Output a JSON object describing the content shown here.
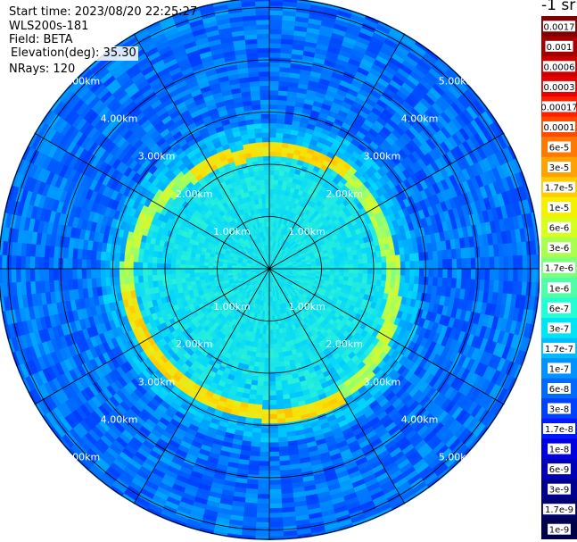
{
  "header": {
    "start_time": "Start time: 2023/08/20 22:25:27",
    "station": "WLS200s-181",
    "field": "Field: BETA",
    "elevation": "Elevation(deg): 35.30",
    "nrays": "NRays: 120"
  },
  "colorbar": {
    "unit": "-1 sr",
    "labels": [
      "0.0017",
      "0.001",
      "0.0006",
      "0.0003",
      "0.00017",
      "0.0001",
      "6e-5",
      "3e-5",
      "1.7e-5",
      "1e-5",
      "6e-6",
      "3e-6",
      "1.7e-6",
      "1e-6",
      "6e-7",
      "3e-7",
      "1.7e-7",
      "1e-7",
      "6e-8",
      "3e-8",
      "1.7e-8",
      "1e-8",
      "6e-9",
      "3e-9",
      "1.7e-9",
      "1e-9"
    ],
    "colors": [
      "#7f0000",
      "#a50000",
      "#c80000",
      "#e60000",
      "#ff1e00",
      "#ff4a00",
      "#ff7800",
      "#ffa200",
      "#ffcc00",
      "#f5f000",
      "#d6ff1c",
      "#a8ff4e",
      "#7cff7a",
      "#4effa8",
      "#22ffd4",
      "#00e4f8",
      "#00bcff",
      "#0092ff",
      "#006aff",
      "#0040ff",
      "#0018ff",
      "#0000e0",
      "#0000b8",
      "#000090",
      "#00006a",
      "#00004a"
    ]
  },
  "rings": {
    "labels_km": [
      "1.00km",
      "2.00km",
      "3.00km",
      "4.00km",
      "5.00km"
    ]
  },
  "chart_data": {
    "type": "heatmap",
    "projection": "polar-ppi",
    "field": "BETA",
    "elevation_deg": 35.3,
    "nrays": 120,
    "range_rings_km": [
      1,
      2,
      3,
      4,
      5
    ],
    "max_range_km": 5.2,
    "azimuth_spokes_deg": [
      0,
      30,
      60,
      90,
      120,
      150,
      180,
      210,
      240,
      270,
      300,
      330
    ],
    "scale": "log",
    "value_range": [
      1e-09,
      0.0017
    ],
    "features": [
      {
        "description": "near-range return, about 1e-6 to 3e-7",
        "range_km": [
          0,
          2.9
        ]
      },
      {
        "description": "enhanced ring near cloud base, about 1e-5 to 6e-6",
        "range_km": [
          2.3,
          3.1
        ]
      },
      {
        "description": "outer background, about 1e-8 to 3e-8",
        "range_km": [
          3.1,
          5.2
        ]
      }
    ]
  }
}
